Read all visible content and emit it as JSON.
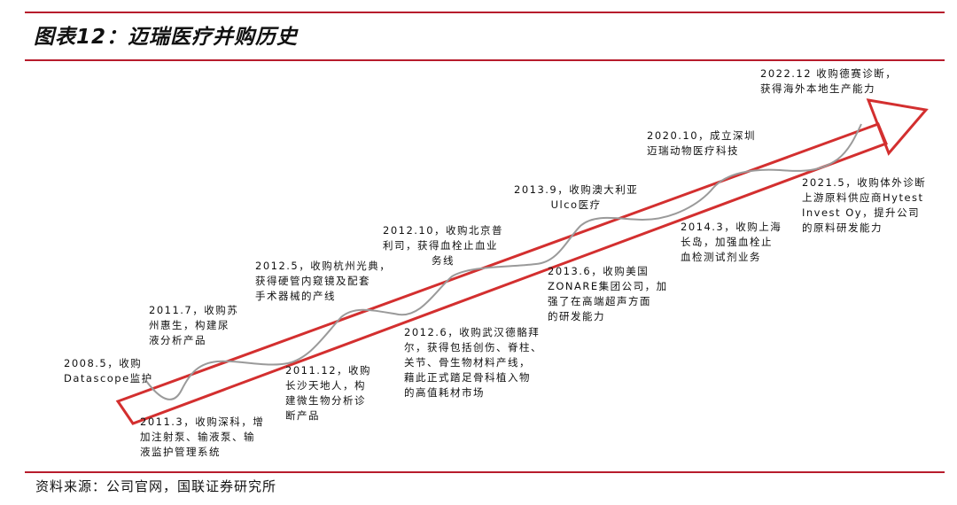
{
  "header": {
    "title": "图表12：迈瑞医疗并购历史"
  },
  "footer": {
    "source": "资料来源：公司官网，国联证券研究所"
  },
  "colors": {
    "rule": "#b71c2c",
    "arrow_outline": "#d32f2f",
    "curve": "#9a9a9a"
  },
  "events": [
    {
      "lines": [
        "2008.5，收购",
        "Datascope监护"
      ]
    },
    {
      "lines": [
        "2011.3，收购深科，增",
        "加注射泵、输液泵、输",
        "液监护管理系统"
      ]
    },
    {
      "lines": [
        "2011.7，收购苏",
        "州惠生，构建尿",
        "液分析产品"
      ]
    },
    {
      "lines": [
        "2011.12，收购",
        "长沙天地人，构",
        "建微生物分析诊",
        "断产品"
      ]
    },
    {
      "lines": [
        "2012.5，收购杭州光典，",
        "获得硬管内窥镜及配套",
        "手术器械的产线"
      ]
    },
    {
      "lines": [
        "2012.6，收购武汉德骼拜",
        "尔，获得包括创伤、脊柱、",
        "关节、骨生物材料产线，",
        "藉此正式踏足骨科植入物",
        "的高值耗材市场"
      ]
    },
    {
      "lines": [
        "2012.10，收购北京普",
        "利司，获得血栓止血业",
        "务线"
      ]
    },
    {
      "lines": [
        "2013.6，收购美国",
        "ZONARE集团公司，加",
        "强了在高端超声方面",
        "的研发能力"
      ]
    },
    {
      "lines": [
        "2013.9，收购澳大利亚",
        "Ulco医疗"
      ]
    },
    {
      "lines": [
        "2014.3，收购上海",
        "长岛，加强血栓止",
        "血检测试剂业务"
      ]
    },
    {
      "lines": [
        "2020.10，成立深圳",
        "迈瑞动物医疗科技"
      ]
    },
    {
      "lines": [
        "2021.5，收购体外诊断",
        "上游原料供应商Hytest",
        "Invest Oy，提升公司",
        "的原料研发能力"
      ]
    },
    {
      "lines": [
        "2022.12 收购德赛诊断，",
        "获得海外本地生产能力"
      ]
    }
  ]
}
